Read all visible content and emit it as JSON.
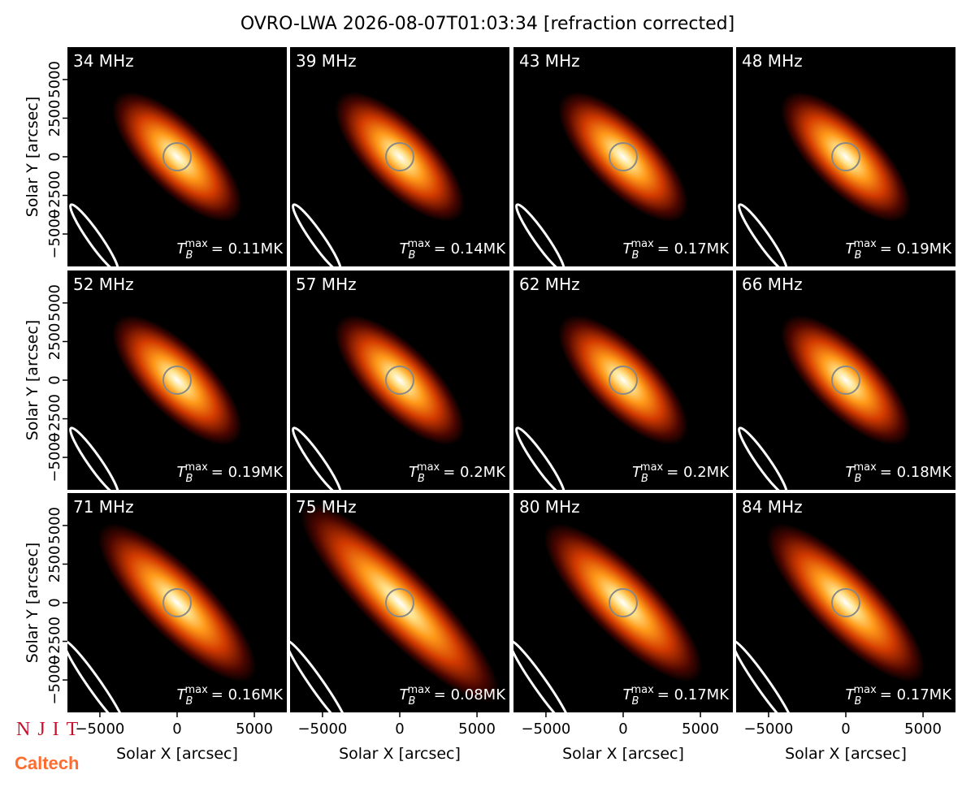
{
  "chart_data": {
    "type": "image-grid",
    "title": "OVRO-LWA 2026-08-07T01:03:34 [refraction corrected]",
    "x_label": "Solar X [arcsec]",
    "y_label": "Solar Y [arcsec]",
    "xlim": [
      -7100,
      7100
    ],
    "ylim": [
      -7100,
      7100
    ],
    "xticks": [
      {
        "value": -5000,
        "label": "−5000"
      },
      0,
      5000
    ],
    "yticks": [
      {
        "value": -5000,
        "label": "−5000"
      },
      {
        "value": -2500,
        "label": "−2500"
      },
      0,
      2500,
      5000
    ],
    "tb_symbol": {
      "base": "T",
      "sub": "B",
      "sup": "max"
    },
    "panels": [
      {
        "label": "34 MHz",
        "tb": "= 0.11MK"
      },
      {
        "label": "39 MHz",
        "tb": "= 0.14MK"
      },
      {
        "label": "43 MHz",
        "tb": "= 0.17MK"
      },
      {
        "label": "48 MHz",
        "tb": "= 0.19MK"
      },
      {
        "label": "52 MHz",
        "tb": "= 0.19MK"
      },
      {
        "label": "57 MHz",
        "tb": "= 0.2MK"
      },
      {
        "label": "62 MHz",
        "tb": "= 0.2MK"
      },
      {
        "label": "66 MHz",
        "tb": "= 0.18MK"
      },
      {
        "label": "71 MHz",
        "tb": "= 0.16MK"
      },
      {
        "label": "75 MHz",
        "tb": "= 0.08MK"
      },
      {
        "label": "80 MHz",
        "tb": "= 0.17MK"
      },
      {
        "label": "84 MHz",
        "tb": "= 0.17MK"
      }
    ],
    "logos": [
      "NJIT",
      "Caltech"
    ]
  }
}
